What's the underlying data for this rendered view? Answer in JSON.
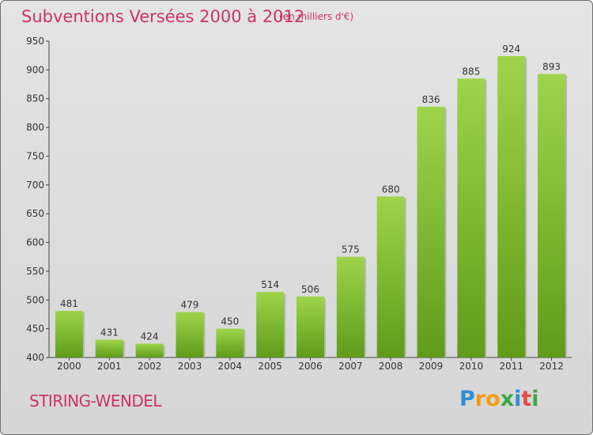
{
  "title": "Subventions Versées 2000 à 2012",
  "subtitle": "(en milliers d'€)",
  "place": "STIRING-WENDEL",
  "logo": {
    "text": "Proxiti",
    "colors": [
      "#2f8fd6",
      "#f39c12",
      "#f39c12",
      "#3aa845",
      "#2f8fd6",
      "#e74c3c",
      "#3aa845"
    ]
  },
  "colors": {
    "accent": "#cc3366",
    "bar_top": "#9ed44a",
    "bar_bottom": "#5f9c1a"
  },
  "chart_data": {
    "type": "bar",
    "categories": [
      "2000",
      "2001",
      "2002",
      "2003",
      "2004",
      "2005",
      "2006",
      "2007",
      "2008",
      "2009",
      "2010",
      "2011",
      "2012"
    ],
    "values": [
      481,
      431,
      424,
      479,
      450,
      514,
      506,
      575,
      680,
      836,
      885,
      924,
      893
    ],
    "ylim": [
      400,
      950
    ],
    "yticks": [
      400,
      450,
      500,
      550,
      600,
      650,
      700,
      750,
      800,
      850,
      900,
      950
    ],
    "grid": false,
    "data_labels": true
  }
}
